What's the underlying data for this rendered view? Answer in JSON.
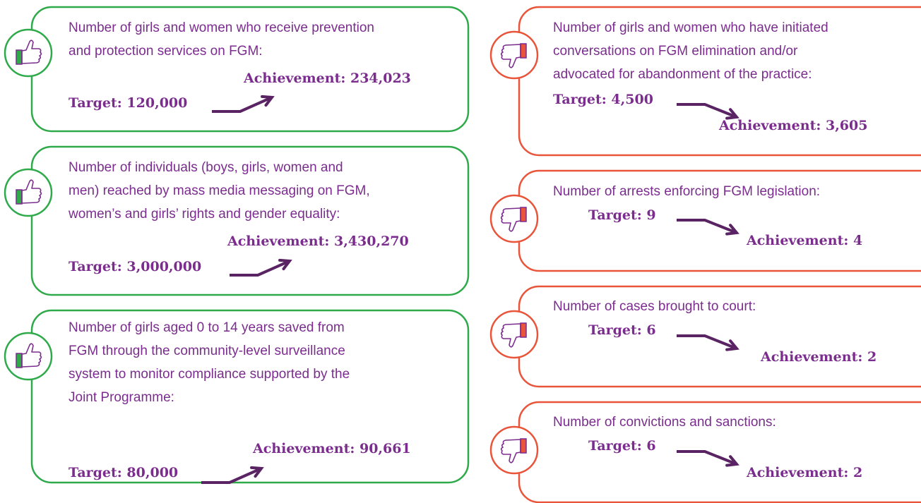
{
  "left_cards": [
    {
      "lines": [
        "Number of girls and women who receive prevention",
        "and protection services on FGM:"
      ],
      "target": "Target: 120,000",
      "achievement": "Achievement: 234,023"
    },
    {
      "lines": [
        "Number of individuals (boys, girls, women and",
        "men) reached by mass media messaging on FGM,",
        "women’s and girls’ rights and gender equality:"
      ],
      "target": "Target: 3,000,000",
      "achievement": "Achievement: 3,430,270"
    },
    {
      "lines": [
        "Number of girls aged 0 to 14 years saved from",
        "FGM through the community-level surveillance",
        "system to monitor compliance supported by the",
        "Joint Programme:"
      ],
      "target": "Target: 80,000",
      "achievement": "Achievement: 90,661"
    }
  ],
  "right_cards": [
    {
      "lines": [
        "Number of girls and women who have initiated",
        "conversations on FGM elimination and/or",
        "advocated for abandonment of the practice:"
      ],
      "target": "Target: 4,500",
      "achievement": "Achievement: 3,605"
    },
    {
      "lines": [
        "Number of arrests enforcing FGM legislation:"
      ],
      "target": "Target: 9",
      "achievement": "Achievement: 4"
    },
    {
      "lines": [
        "Number of cases brought to court:"
      ],
      "target": "Target: 6",
      "achievement": "Achievement: 2"
    },
    {
      "lines": [
        "Number of convictions and sanctions:"
      ],
      "target": "Target: 6",
      "achievement": "Achievement: 2"
    }
  ]
}
